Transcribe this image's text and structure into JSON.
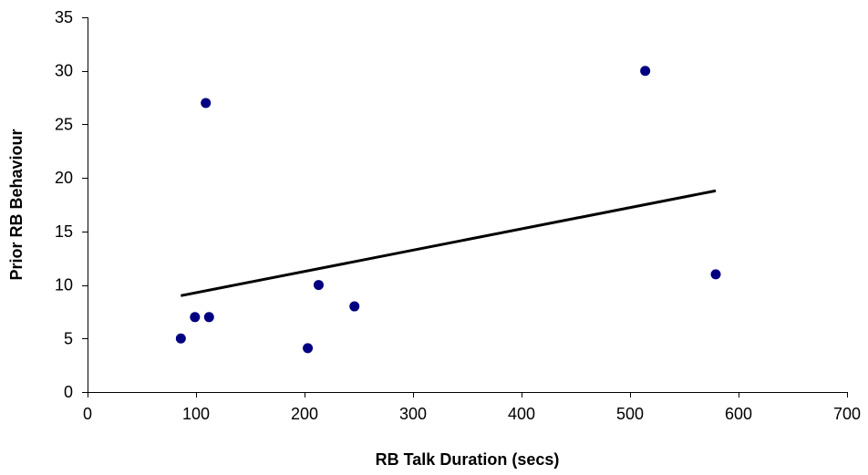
{
  "chart_data": {
    "type": "scatter",
    "title": "",
    "xlabel": "RB Talk Duration (secs)",
    "ylabel": "Prior RB Behaviour",
    "xlim": [
      0,
      700
    ],
    "ylim": [
      0,
      35
    ],
    "x_ticks": [
      0,
      100,
      200,
      300,
      400,
      500,
      600,
      700
    ],
    "y_ticks": [
      0,
      5,
      10,
      15,
      20,
      25,
      30,
      35
    ],
    "grid": false,
    "legend": "none",
    "series": [
      {
        "type": "scatter",
        "color": "#000080",
        "points": [
          {
            "x": 86,
            "y": 5
          },
          {
            "x": 99,
            "y": 7
          },
          {
            "x": 109,
            "y": 27
          },
          {
            "x": 112,
            "y": 7
          },
          {
            "x": 203,
            "y": 4.1
          },
          {
            "x": 213,
            "y": 10
          },
          {
            "x": 246,
            "y": 8
          },
          {
            "x": 514,
            "y": 30
          },
          {
            "x": 579,
            "y": 11
          }
        ]
      }
    ],
    "trendline": {
      "type": "linear",
      "color": "#000000",
      "x": [
        86,
        579
      ],
      "y": [
        9.0,
        18.8
      ]
    }
  }
}
